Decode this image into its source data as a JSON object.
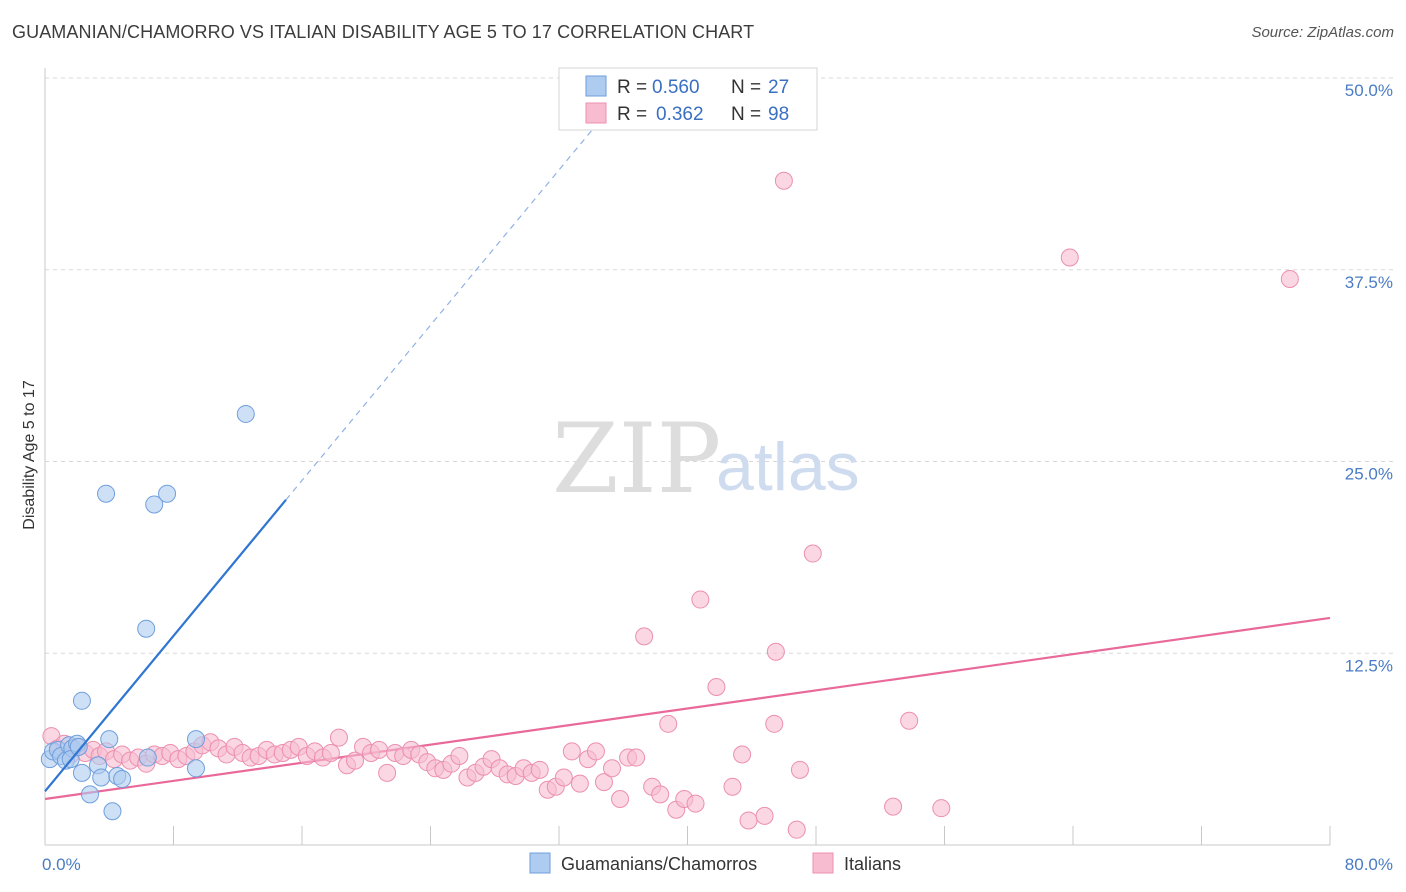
{
  "title": "GUAMANIAN/CHAMORRO VS ITALIAN DISABILITY AGE 5 TO 17 CORRELATION CHART",
  "source": "Source: ZipAtlas.com",
  "watermark": {
    "zip": "ZIP",
    "atlas": "atlas"
  },
  "colors": {
    "blue_fill": "#aecbf0",
    "blue_stroke": "#6f9fdc",
    "blue_line": "#2f76d2",
    "pink_fill": "#f7bcd0",
    "pink_stroke": "#ec8fb0",
    "pink_line": "#e8699a",
    "grid": "#d8d8d8",
    "axis_text": "#4a7cc4"
  },
  "legend": {
    "rows": [
      {
        "r_label": "R =",
        "r_value": "0.560",
        "n_label": "N =",
        "n_value": "27"
      },
      {
        "r_label": "R =",
        "r_value": "0.362",
        "n_label": "N =",
        "n_value": "98"
      }
    ]
  },
  "chart_data": {
    "type": "scatter",
    "title": "GUAMANIAN/CHAMORRO VS ITALIAN DISABILITY AGE 5 TO 17 CORRELATION CHART",
    "xlabel": "",
    "ylabel": "Disability Age 5 to 17",
    "xlim": [
      0,
      80
    ],
    "ylim": [
      0,
      50
    ],
    "x_tick_labels": [
      "0.0%",
      "80.0%"
    ],
    "y_ticks": [
      12.5,
      25.0,
      37.5,
      50.0
    ],
    "y_tick_labels": [
      "12.5%",
      "25.0%",
      "37.5%",
      "50.0%"
    ],
    "x_minor_ticks": [
      8,
      16,
      24,
      32,
      40,
      48,
      56,
      64,
      72,
      80
    ],
    "series": [
      {
        "name": "Guamanians/Chamorros",
        "color": "#aecbf0",
        "r": "0.560",
        "n": "27",
        "points": [
          [
            0.3,
            5.6
          ],
          [
            0.5,
            6.1
          ],
          [
            0.8,
            6.2
          ],
          [
            1.0,
            5.8
          ],
          [
            1.3,
            5.5
          ],
          [
            1.5,
            6.5
          ],
          [
            1.7,
            6.3
          ],
          [
            2.0,
            6.6
          ],
          [
            2.3,
            4.7
          ],
          [
            2.8,
            3.3
          ],
          [
            3.3,
            5.2
          ],
          [
            3.5,
            4.4
          ],
          [
            3.8,
            22.9
          ],
          [
            4.0,
            6.9
          ],
          [
            4.2,
            2.2
          ],
          [
            4.5,
            4.5
          ],
          [
            4.8,
            4.3
          ],
          [
            6.3,
            14.1
          ],
          [
            6.8,
            22.2
          ],
          [
            7.6,
            22.9
          ],
          [
            9.4,
            6.9
          ],
          [
            9.4,
            5.0
          ],
          [
            12.5,
            28.1
          ],
          [
            2.3,
            9.4
          ],
          [
            6.4,
            5.7
          ],
          [
            1.6,
            5.6
          ],
          [
            2.1,
            6.4
          ]
        ],
        "trend": {
          "x": [
            0,
            15
          ],
          "y": [
            3.5,
            22.5
          ],
          "dashed_to": {
            "x": 35,
            "y": 47.8
          }
        }
      },
      {
        "name": "Italians",
        "color": "#f7bcd0",
        "r": "0.362",
        "n": "98",
        "points": [
          [
            0.4,
            7.1
          ],
          [
            0.8,
            6.3
          ],
          [
            1.2,
            6.6
          ],
          [
            1.6,
            5.9
          ],
          [
            2.0,
            6.4
          ],
          [
            2.5,
            6.0
          ],
          [
            3.0,
            6.2
          ],
          [
            3.4,
            5.8
          ],
          [
            3.8,
            6.1
          ],
          [
            4.3,
            5.6
          ],
          [
            4.8,
            5.9
          ],
          [
            5.3,
            5.5
          ],
          [
            5.8,
            5.7
          ],
          [
            6.3,
            5.3
          ],
          [
            6.8,
            5.9
          ],
          [
            7.3,
            5.8
          ],
          [
            7.8,
            6.0
          ],
          [
            8.3,
            5.6
          ],
          [
            8.8,
            5.8
          ],
          [
            9.3,
            6.1
          ],
          [
            9.8,
            6.5
          ],
          [
            10.3,
            6.7
          ],
          [
            10.8,
            6.3
          ],
          [
            11.3,
            5.9
          ],
          [
            11.8,
            6.4
          ],
          [
            12.3,
            6.0
          ],
          [
            12.8,
            5.7
          ],
          [
            13.3,
            5.8
          ],
          [
            13.8,
            6.2
          ],
          [
            14.3,
            5.9
          ],
          [
            14.8,
            6.0
          ],
          [
            15.3,
            6.2
          ],
          [
            15.8,
            6.4
          ],
          [
            16.3,
            5.8
          ],
          [
            16.8,
            6.1
          ],
          [
            17.3,
            5.7
          ],
          [
            17.8,
            6.0
          ],
          [
            18.3,
            7.0
          ],
          [
            18.8,
            5.2
          ],
          [
            19.3,
            5.5
          ],
          [
            19.8,
            6.4
          ],
          [
            20.3,
            6.0
          ],
          [
            20.8,
            6.2
          ],
          [
            21.3,
            4.7
          ],
          [
            21.8,
            6.0
          ],
          [
            22.3,
            5.8
          ],
          [
            22.8,
            6.2
          ],
          [
            23.3,
            5.9
          ],
          [
            23.8,
            5.4
          ],
          [
            24.3,
            5.0
          ],
          [
            24.8,
            4.9
          ],
          [
            25.3,
            5.3
          ],
          [
            25.8,
            5.8
          ],
          [
            26.3,
            4.4
          ],
          [
            26.8,
            4.7
          ],
          [
            27.3,
            5.1
          ],
          [
            27.8,
            5.6
          ],
          [
            28.3,
            5.0
          ],
          [
            28.8,
            4.6
          ],
          [
            29.3,
            4.5
          ],
          [
            29.8,
            5.0
          ],
          [
            30.3,
            4.7
          ],
          [
            30.8,
            4.9
          ],
          [
            31.3,
            3.6
          ],
          [
            31.8,
            3.8
          ],
          [
            32.3,
            4.4
          ],
          [
            32.8,
            6.1
          ],
          [
            33.3,
            4.0
          ],
          [
            33.8,
            5.6
          ],
          [
            34.3,
            6.1
          ],
          [
            34.8,
            4.1
          ],
          [
            35.3,
            5.0
          ],
          [
            35.8,
            3.0
          ],
          [
            36.3,
            5.7
          ],
          [
            36.8,
            5.7
          ],
          [
            37.3,
            13.6
          ],
          [
            37.8,
            3.8
          ],
          [
            38.3,
            3.3
          ],
          [
            38.8,
            7.9
          ],
          [
            39.3,
            2.3
          ],
          [
            39.8,
            3.0
          ],
          [
            40.5,
            2.7
          ],
          [
            40.8,
            16.0
          ],
          [
            41.8,
            10.3
          ],
          [
            42.8,
            3.8
          ],
          [
            43.4,
            5.9
          ],
          [
            43.8,
            1.6
          ],
          [
            44.8,
            1.9
          ],
          [
            45.4,
            7.9
          ],
          [
            45.5,
            12.6
          ],
          [
            46.0,
            43.3
          ],
          [
            46.8,
            1.0
          ],
          [
            47.0,
            4.9
          ],
          [
            47.8,
            19.0
          ],
          [
            52.8,
            2.5
          ],
          [
            53.8,
            8.1
          ],
          [
            55.8,
            2.4
          ],
          [
            63.8,
            38.3
          ],
          [
            77.5,
            36.9
          ]
        ],
        "trend": {
          "x": [
            0,
            80
          ],
          "y": [
            3.0,
            14.8
          ]
        }
      }
    ],
    "legend_labels": [
      "Guamanians/Chamorros",
      "Italians"
    ]
  }
}
